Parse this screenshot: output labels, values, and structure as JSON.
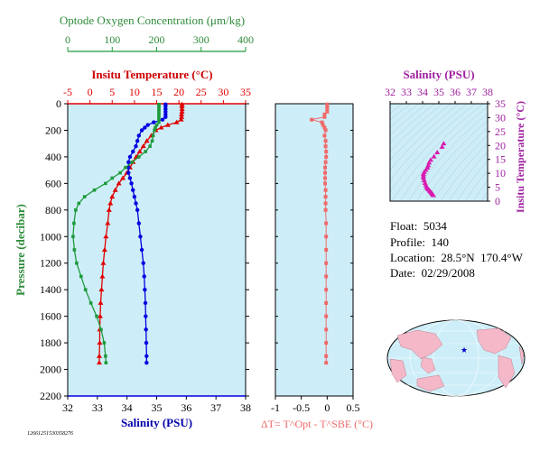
{
  "colors": {
    "panel_bg": "#cdeef8",
    "oxygen": "#1e9a3c",
    "temperature": "#e00000",
    "salinity": "#0000e0",
    "delta_t": "#f06a6a",
    "salinity_panel": "#d81bb0",
    "salinity_axis_text": "#a020a0",
    "oxygen_axis_text": "#2e8b3a",
    "temp_axis_text": "#cc0000",
    "salinity_bottom_text": "#0000aa"
  },
  "float_info": {
    "float": "Float:  5034",
    "profile": "Profile:  140",
    "location": "Location:  28.5°N  170.4°W",
    "date": "Date:  02/29/2008"
  },
  "footnote": "12661251530358276",
  "chart_data": [
    {
      "type": "line",
      "title": "",
      "ylabel": "Pressure (decibar)",
      "ylim": [
        0,
        2200
      ],
      "y_ticks": [
        0,
        200,
        400,
        600,
        800,
        1000,
        1200,
        1400,
        1600,
        1800,
        2000,
        2200
      ],
      "axes": {
        "oxygen": {
          "label": "Optode Oxygen Concentration (μm/kg)",
          "lim": [
            0,
            400
          ],
          "ticks": [
            0,
            100,
            200,
            300,
            400
          ]
        },
        "temperature": {
          "label": "Insitu Temperature (°C)",
          "lim": [
            -5,
            35
          ],
          "ticks": [
            -5,
            0,
            5,
            10,
            15,
            20,
            25,
            30,
            35
          ]
        },
        "salinity": {
          "label": "Salinity (PSU)",
          "lim": [
            32,
            38
          ],
          "ticks": [
            32,
            33,
            34,
            35,
            36,
            37,
            38
          ]
        }
      },
      "series": [
        {
          "axis": "temperature",
          "points": [
            [
              20.7,
              5
            ],
            [
              20.7,
              20
            ],
            [
              20.7,
              40
            ],
            [
              20.7,
              60
            ],
            [
              20.6,
              80
            ],
            [
              20.6,
              100
            ],
            [
              20.5,
              120
            ],
            [
              19.5,
              140
            ],
            [
              17.5,
              160
            ],
            [
              16.0,
              180
            ],
            [
              14.8,
              200
            ],
            [
              13.8,
              240
            ],
            [
              12.8,
              280
            ],
            [
              12.0,
              320
            ],
            [
              11.2,
              360
            ],
            [
              10.4,
              400
            ],
            [
              9.7,
              440
            ],
            [
              9.0,
              480
            ],
            [
              8.3,
              520
            ],
            [
              7.4,
              560
            ],
            [
              6.5,
              600
            ],
            [
              5.7,
              650
            ],
            [
              5.0,
              700
            ],
            [
              4.6,
              750
            ],
            [
              4.3,
              800
            ],
            [
              4.0,
              900
            ],
            [
              3.6,
              1000
            ],
            [
              3.3,
              1100
            ],
            [
              3.0,
              1200
            ],
            [
              2.8,
              1300
            ],
            [
              2.6,
              1400
            ],
            [
              2.4,
              1500
            ],
            [
              2.3,
              1600
            ],
            [
              2.2,
              1700
            ],
            [
              2.2,
              1800
            ],
            [
              2.1,
              1900
            ],
            [
              2.1,
              1950
            ]
          ]
        },
        {
          "axis": "salinity",
          "points": [
            [
              35.3,
              5
            ],
            [
              35.3,
              20
            ],
            [
              35.3,
              40
            ],
            [
              35.3,
              60
            ],
            [
              35.3,
              80
            ],
            [
              35.3,
              100
            ],
            [
              35.2,
              120
            ],
            [
              34.9,
              140
            ],
            [
              34.7,
              160
            ],
            [
              34.6,
              180
            ],
            [
              34.5,
              200
            ],
            [
              34.4,
              240
            ],
            [
              34.35,
              280
            ],
            [
              34.3,
              320
            ],
            [
              34.2,
              360
            ],
            [
              34.1,
              400
            ],
            [
              34.05,
              440
            ],
            [
              34.05,
              480
            ],
            [
              34.05,
              520
            ],
            [
              34.1,
              560
            ],
            [
              34.15,
              600
            ],
            [
              34.2,
              650
            ],
            [
              34.25,
              700
            ],
            [
              34.3,
              750
            ],
            [
              34.35,
              800
            ],
            [
              34.4,
              900
            ],
            [
              34.45,
              1000
            ],
            [
              34.5,
              1100
            ],
            [
              34.55,
              1200
            ],
            [
              34.58,
              1300
            ],
            [
              34.6,
              1400
            ],
            [
              34.62,
              1500
            ],
            [
              34.63,
              1600
            ],
            [
              34.64,
              1700
            ],
            [
              34.65,
              1800
            ],
            [
              34.66,
              1900
            ],
            [
              34.66,
              1950
            ]
          ]
        },
        {
          "axis": "oxygen",
          "points": [
            [
              205,
              5
            ],
            [
              205,
              20
            ],
            [
              205,
              40
            ],
            [
              205,
              60
            ],
            [
              205,
              80
            ],
            [
              205,
              100
            ],
            [
              205,
              120
            ],
            [
              205,
              140
            ],
            [
              200,
              160
            ],
            [
              197,
              180
            ],
            [
              195,
              200
            ],
            [
              192,
              240
            ],
            [
              190,
              280
            ],
            [
              185,
              320
            ],
            [
              175,
              360
            ],
            [
              160,
              400
            ],
            [
              145,
              440
            ],
            [
              130,
              480
            ],
            [
              118,
              520
            ],
            [
              100,
              560
            ],
            [
              85,
              600
            ],
            [
              60,
              650
            ],
            [
              38,
              700
            ],
            [
              25,
              750
            ],
            [
              18,
              800
            ],
            [
              14,
              900
            ],
            [
              12,
              1000
            ],
            [
              15,
              1100
            ],
            [
              20,
              1200
            ],
            [
              30,
              1300
            ],
            [
              40,
              1400
            ],
            [
              52,
              1500
            ],
            [
              65,
              1600
            ],
            [
              75,
              1700
            ],
            [
              82,
              1800
            ],
            [
              85,
              1900
            ],
            [
              86,
              1950
            ]
          ]
        }
      ]
    },
    {
      "type": "scatter",
      "xlabel": "ΔT= T^Opt - T^SBE (°C)",
      "xlim": [
        -1.0,
        0.5
      ],
      "x_ticks": [
        -1.0,
        -0.5,
        0.0,
        0.5
      ],
      "ylim": [
        0,
        2200
      ],
      "series": [
        {
          "points": [
            [
              0.0,
              5
            ],
            [
              0.0,
              20
            ],
            [
              0.0,
              40
            ],
            [
              0.0,
              60
            ],
            [
              -0.05,
              80
            ],
            [
              -0.05,
              100
            ],
            [
              -0.3,
              120
            ],
            [
              -0.1,
              140
            ],
            [
              -0.08,
              160
            ],
            [
              -0.05,
              180
            ],
            [
              -0.03,
              200
            ],
            [
              -0.05,
              240
            ],
            [
              -0.03,
              280
            ],
            [
              -0.03,
              320
            ],
            [
              -0.02,
              360
            ],
            [
              -0.02,
              400
            ],
            [
              -0.03,
              440
            ],
            [
              -0.04,
              480
            ],
            [
              -0.04,
              520
            ],
            [
              -0.04,
              560
            ],
            [
              -0.04,
              600
            ],
            [
              -0.03,
              650
            ],
            [
              -0.03,
              700
            ],
            [
              -0.03,
              750
            ],
            [
              -0.03,
              800
            ],
            [
              -0.02,
              900
            ],
            [
              -0.02,
              1000
            ],
            [
              -0.02,
              1100
            ],
            [
              -0.02,
              1200
            ],
            [
              -0.02,
              1300
            ],
            [
              -0.02,
              1400
            ],
            [
              -0.02,
              1500
            ],
            [
              -0.02,
              1600
            ],
            [
              -0.02,
              1700
            ],
            [
              -0.02,
              1800
            ],
            [
              -0.02,
              1900
            ],
            [
              -0.02,
              1950
            ]
          ]
        }
      ]
    },
    {
      "type": "scatter",
      "xlabel": "Salinity (PSU)",
      "ylabel": "Insitu Temperature (°C)",
      "xlim": [
        32,
        38
      ],
      "ylim": [
        0,
        35
      ],
      "x_ticks": [
        32,
        33,
        34,
        35,
        36,
        37,
        38
      ],
      "y_ticks": [
        0,
        5,
        10,
        15,
        20,
        25,
        30,
        35
      ],
      "series": [
        {
          "points": [
            [
              35.3,
              20.7
            ],
            [
              35.2,
              19.5
            ],
            [
              34.9,
              17.5
            ],
            [
              34.7,
              16.0
            ],
            [
              34.5,
              14.8
            ],
            [
              34.4,
              13.8
            ],
            [
              34.35,
              12.8
            ],
            [
              34.3,
              12.0
            ],
            [
              34.2,
              11.2
            ],
            [
              34.1,
              10.4
            ],
            [
              34.05,
              9.7
            ],
            [
              34.05,
              9.0
            ],
            [
              34.05,
              8.3
            ],
            [
              34.1,
              7.4
            ],
            [
              34.15,
              6.5
            ],
            [
              34.2,
              5.7
            ],
            [
              34.25,
              5.0
            ],
            [
              34.3,
              4.6
            ],
            [
              34.35,
              4.3
            ],
            [
              34.4,
              4.0
            ],
            [
              34.45,
              3.6
            ],
            [
              34.5,
              3.3
            ],
            [
              34.55,
              3.0
            ],
            [
              34.6,
              2.6
            ],
            [
              34.63,
              2.3
            ],
            [
              34.66,
              2.1
            ]
          ]
        }
      ]
    }
  ]
}
